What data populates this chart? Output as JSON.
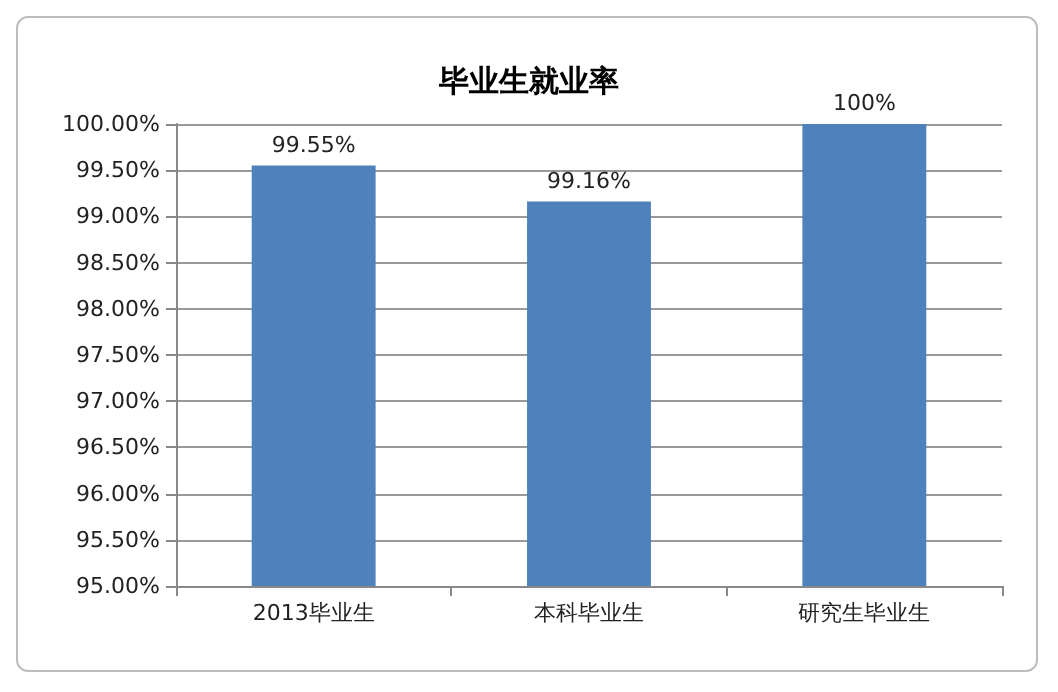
{
  "chart_data": {
    "type": "bar",
    "title": "毕业生就业率",
    "categories": [
      "2013毕业生",
      "本科毕业生",
      "研究生毕业生"
    ],
    "values": [
      99.55,
      99.16,
      100
    ],
    "value_labels": [
      "99.55%",
      "99.16%",
      "100%"
    ],
    "color": "#4f81bd",
    "ylim": [
      95,
      100
    ],
    "yticks": [
      {
        "value": 95,
        "label": "95.00%"
      },
      {
        "value": 95.5,
        "label": "95.50%"
      },
      {
        "value": 96,
        "label": "96.00%"
      },
      {
        "value": 96.5,
        "label": "96.50%"
      },
      {
        "value": 97,
        "label": "97.00%"
      },
      {
        "value": 97.5,
        "label": "97.50%"
      },
      {
        "value": 98,
        "label": "98.00%"
      },
      {
        "value": 98.5,
        "label": "98.50%"
      },
      {
        "value": 99,
        "label": "99.00%"
      },
      {
        "value": 99.5,
        "label": "99.50%"
      },
      {
        "value": 100,
        "label": "100.00%"
      }
    ],
    "grid": "y"
  }
}
